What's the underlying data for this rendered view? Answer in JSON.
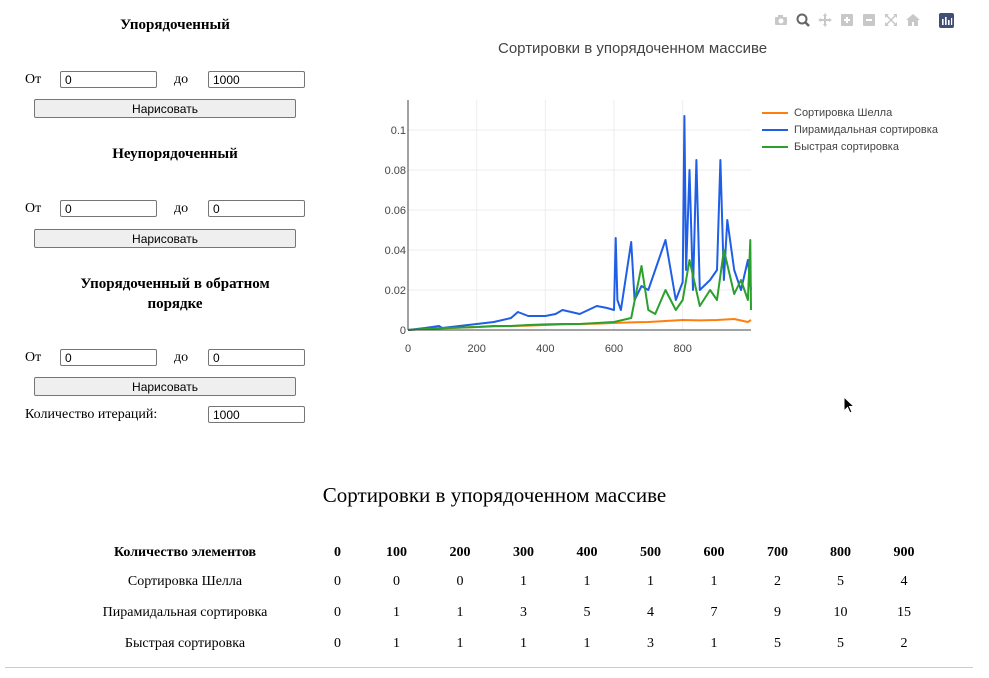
{
  "controls": {
    "sorted": {
      "title": "Упорядоченный",
      "from_label": "От",
      "from_value": "0",
      "to_label": "до",
      "to_value": "1000",
      "button": "Нарисовать"
    },
    "unsorted": {
      "title": "Неупорядоченный",
      "from_label": "От",
      "from_value": "0",
      "to_label": "до",
      "to_value": "0",
      "button": "Нарисовать"
    },
    "reversed": {
      "title": "Упорядоченный в обратном порядке",
      "from_label": "От",
      "from_value": "0",
      "to_label": "до",
      "to_value": "0",
      "button": "Нарисовать"
    },
    "iterations": {
      "label": "Количество итераций:",
      "value": "1000"
    }
  },
  "modebar": {
    "icons": [
      "camera-icon",
      "zoom-icon",
      "pan-icon",
      "zoom-in-icon",
      "zoom-out-icon",
      "autoscale-icon",
      "home-icon",
      "plotly-logo-icon"
    ]
  },
  "chart_data": {
    "type": "line",
    "title": "Сортировки в упорядоченном массиве",
    "xlim": [
      0,
      999
    ],
    "ylim": [
      0,
      0.115
    ],
    "x_ticks": [
      0,
      200,
      400,
      600,
      800
    ],
    "y_ticks": [
      0,
      0.02,
      0.04,
      0.06,
      0.08,
      0.1
    ],
    "y_tick_labels": [
      "0",
      "0.02",
      "0.04",
      "0.06",
      "0.08",
      "0.1"
    ],
    "grid": true,
    "legend_position": "top-right",
    "series": [
      {
        "name": "Сортировка Шелла",
        "color": "#ff7f0e",
        "x": [
          0,
          50,
          100,
          150,
          200,
          250,
          300,
          350,
          400,
          450,
          500,
          550,
          600,
          650,
          700,
          750,
          800,
          850,
          900,
          950,
          990,
          999
        ],
        "y": [
          0,
          0.0005,
          0.0008,
          0.0012,
          0.0015,
          0.0018,
          0.002,
          0.0022,
          0.0025,
          0.0028,
          0.003,
          0.0032,
          0.0035,
          0.0038,
          0.004,
          0.0045,
          0.005,
          0.0048,
          0.005,
          0.0055,
          0.004,
          0.005
        ]
      },
      {
        "name": "Пирамидальная сортировка",
        "color": "#1f5fe8",
        "x": [
          0,
          50,
          90,
          100,
          150,
          200,
          250,
          300,
          320,
          350,
          400,
          430,
          450,
          500,
          550,
          580,
          600,
          605,
          610,
          620,
          650,
          660,
          680,
          700,
          720,
          750,
          780,
          800,
          805,
          810,
          820,
          830,
          840,
          850,
          880,
          900,
          910,
          920,
          930,
          950,
          970,
          990,
          999
        ],
        "y": [
          0,
          0.001,
          0.002,
          0.001,
          0.002,
          0.003,
          0.004,
          0.006,
          0.009,
          0.007,
          0.007,
          0.008,
          0.01,
          0.008,
          0.012,
          0.011,
          0.01,
          0.046,
          0.015,
          0.01,
          0.044,
          0.015,
          0.022,
          0.02,
          0.03,
          0.045,
          0.015,
          0.024,
          0.107,
          0.03,
          0.08,
          0.02,
          0.085,
          0.02,
          0.025,
          0.03,
          0.085,
          0.025,
          0.055,
          0.03,
          0.02,
          0.035,
          0.02
        ]
      },
      {
        "name": "Быстрая сортировка",
        "color": "#2ca02c",
        "x": [
          0,
          50,
          100,
          150,
          200,
          250,
          300,
          350,
          400,
          450,
          500,
          550,
          600,
          650,
          680,
          700,
          720,
          750,
          780,
          800,
          820,
          850,
          880,
          900,
          920,
          950,
          970,
          990,
          997,
          999
        ],
        "y": [
          0,
          0.0005,
          0.001,
          0.0012,
          0.0015,
          0.002,
          0.002,
          0.0025,
          0.0028,
          0.003,
          0.003,
          0.0035,
          0.004,
          0.006,
          0.032,
          0.01,
          0.008,
          0.02,
          0.01,
          0.015,
          0.035,
          0.012,
          0.02,
          0.015,
          0.04,
          0.018,
          0.025,
          0.015,
          0.045,
          0.01
        ]
      }
    ]
  },
  "results": {
    "title": "Сортировки в упорядоченном массиве",
    "header_label": "Количество элементов",
    "columns": [
      "0",
      "100",
      "200",
      "300",
      "400",
      "500",
      "600",
      "700",
      "800",
      "900"
    ],
    "rows": [
      {
        "name": "Сортировка Шелла",
        "values": [
          "0",
          "0",
          "0",
          "1",
          "1",
          "1",
          "1",
          "2",
          "5",
          "4"
        ]
      },
      {
        "name": "Пирамидальная сортировка",
        "values": [
          "0",
          "1",
          "1",
          "3",
          "5",
          "4",
          "7",
          "9",
          "10",
          "15"
        ]
      },
      {
        "name": "Быстрая сортировка",
        "values": [
          "0",
          "1",
          "1",
          "1",
          "1",
          "3",
          "1",
          "5",
          "5",
          "2"
        ]
      }
    ]
  }
}
